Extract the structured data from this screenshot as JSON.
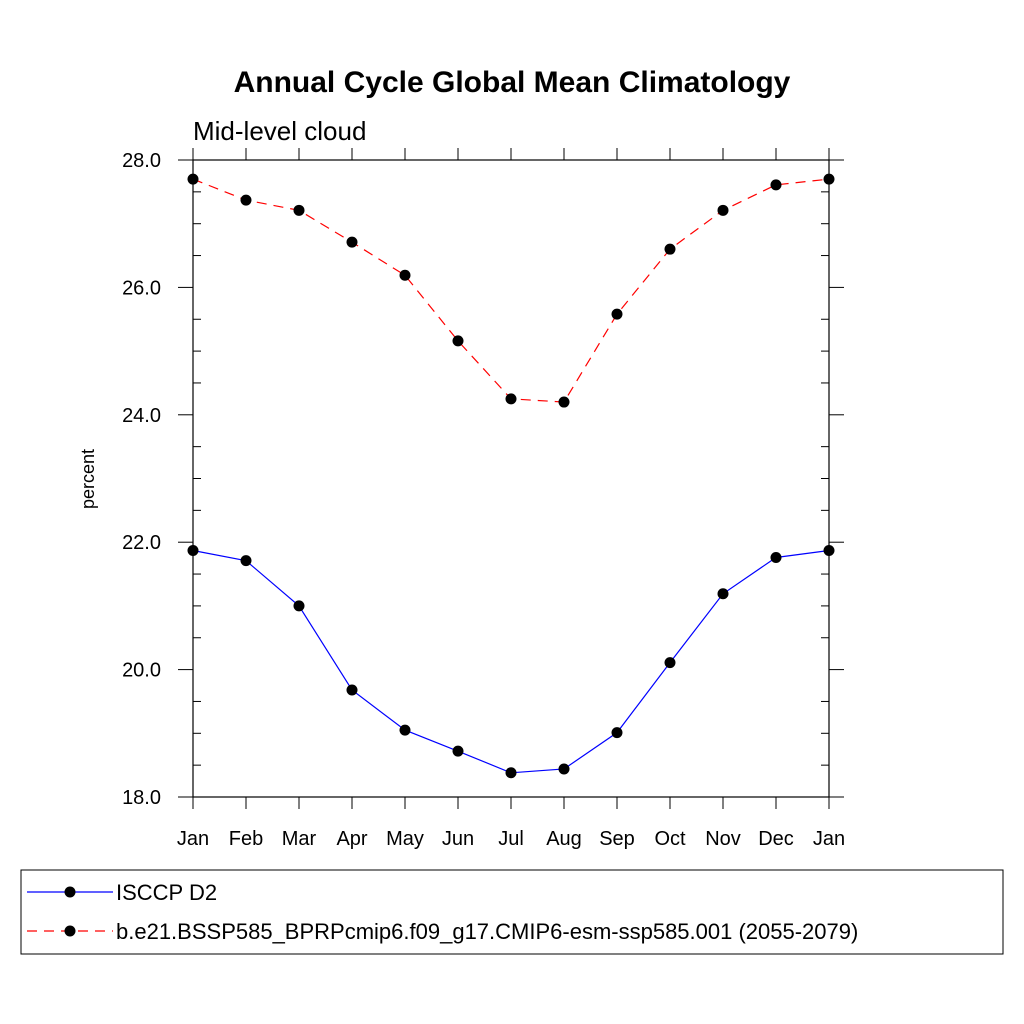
{
  "chart_data": {
    "type": "line",
    "title": "Annual Cycle Global Mean Climatology",
    "subtitle": "Mid-level cloud",
    "xlabel": "",
    "ylabel": "percent",
    "categories": [
      "Jan",
      "Feb",
      "Mar",
      "Apr",
      "May",
      "Jun",
      "Jul",
      "Aug",
      "Sep",
      "Oct",
      "Nov",
      "Dec",
      "Jan"
    ],
    "ylim": [
      18.0,
      28.0
    ],
    "yticks": [
      18.0,
      20.0,
      22.0,
      24.0,
      26.0,
      28.0
    ],
    "ytick_labels": [
      "18.0",
      "20.0",
      "22.0",
      "24.0",
      "26.0",
      "28.0"
    ],
    "grid": false,
    "legend_position": "bottom",
    "series": [
      {
        "name": "ISCCP D2",
        "color": "#0000ff",
        "line_style": "solid",
        "marker": "filled-circle",
        "values": [
          21.87,
          21.71,
          21.0,
          19.68,
          19.05,
          18.72,
          18.38,
          18.44,
          19.01,
          20.11,
          21.19,
          21.76,
          21.87
        ]
      },
      {
        "name": "b.e21.BSSP585_BPRPcmip6.f09_g17.CMIP6-esm-ssp585.001 (2055-2079)",
        "color": "#ff0000",
        "line_style": "dashed",
        "marker": "filled-circle",
        "values": [
          27.7,
          27.37,
          27.21,
          26.71,
          26.19,
          25.16,
          24.25,
          24.2,
          25.58,
          26.6,
          27.21,
          27.61,
          27.7
        ]
      }
    ]
  }
}
